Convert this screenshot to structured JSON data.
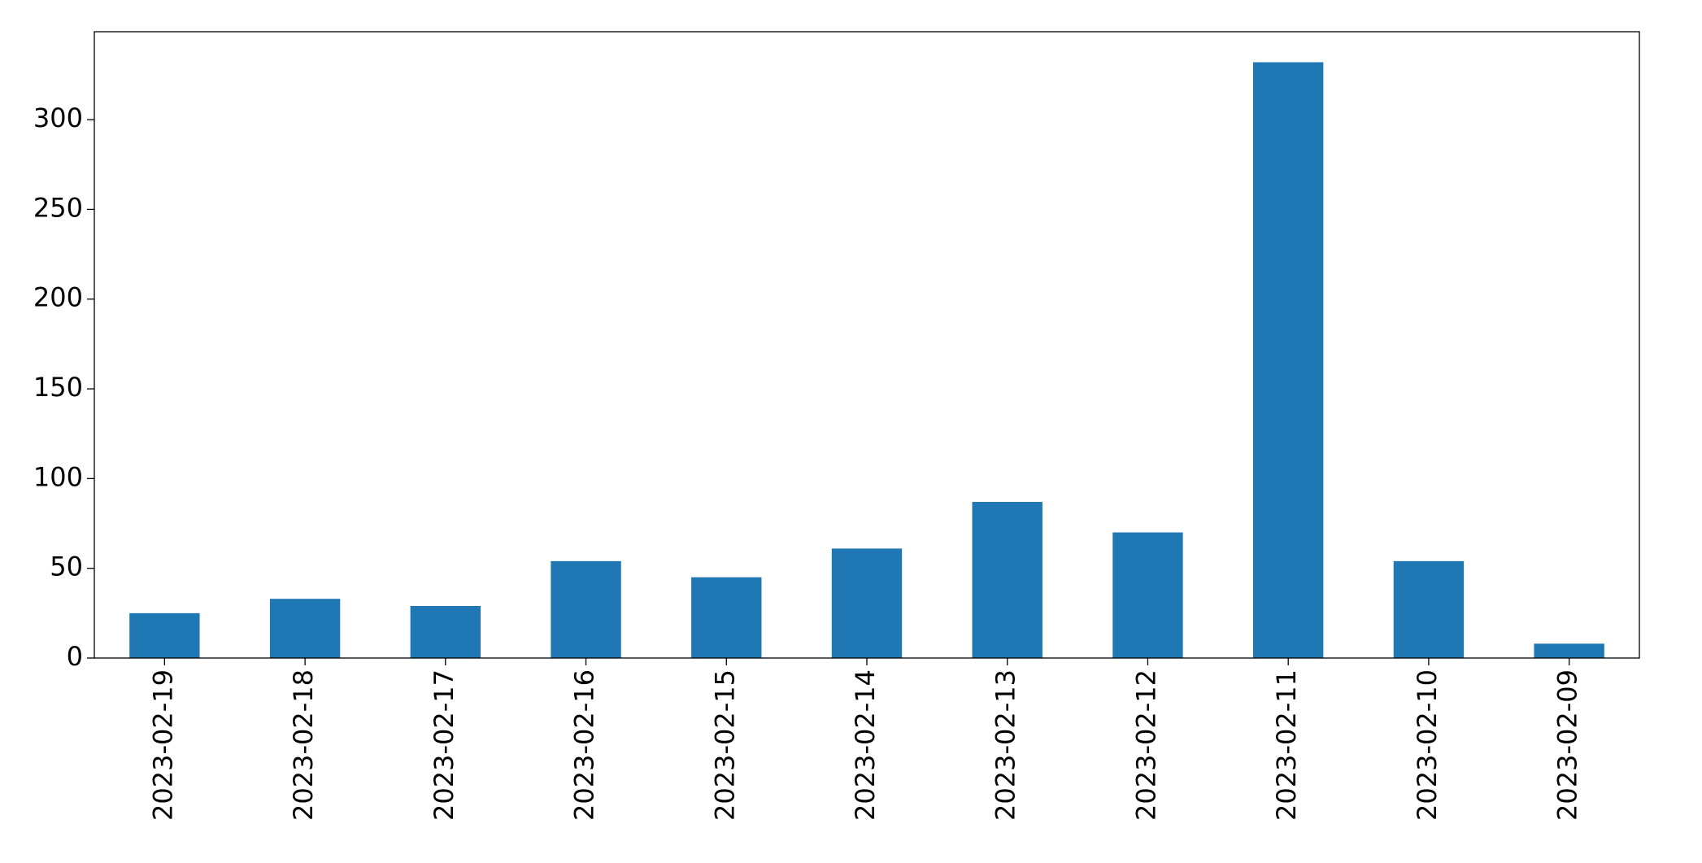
{
  "chart_data": {
    "type": "bar",
    "categories": [
      "2023-02-19",
      "2023-02-18",
      "2023-02-17",
      "2023-02-16",
      "2023-02-15",
      "2023-02-14",
      "2023-02-13",
      "2023-02-12",
      "2023-02-11",
      "2023-02-10",
      "2023-02-09"
    ],
    "values": [
      25,
      33,
      29,
      54,
      45,
      61,
      87,
      70,
      332,
      54,
      8
    ],
    "color": "#1f77b4",
    "ylim": [
      0,
      349
    ],
    "yticks": [
      0,
      50,
      100,
      150,
      200,
      250,
      300
    ],
    "grid": false
  }
}
